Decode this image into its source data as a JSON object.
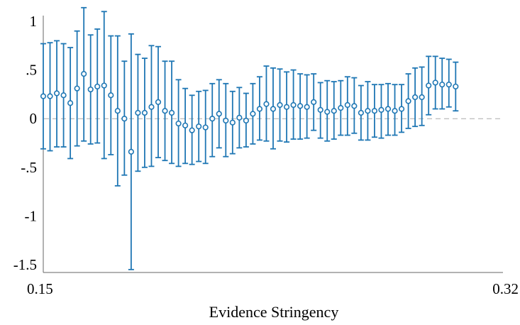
{
  "chart_data": {
    "type": "scatter",
    "title": "",
    "xlabel": "Evidence Stringency",
    "ylabel": "",
    "xlim": [
      0.15,
      0.32
    ],
    "ylim": [
      -1.5,
      1.05
    ],
    "x_ticks": [
      {
        "value": 0.15,
        "label": "0.15"
      },
      {
        "value": 0.32,
        "label": "0.32"
      }
    ],
    "y_ticks": [
      {
        "value": 1,
        "label": "1"
      },
      {
        "value": 0.5,
        "label": ".5"
      },
      {
        "value": 0,
        "label": "0"
      },
      {
        "value": -0.5,
        "label": "-.5"
      },
      {
        "value": -1,
        "label": "-1"
      },
      {
        "value": -1.5,
        "label": "-1.5"
      }
    ],
    "reference_line": {
      "value": 0,
      "style": "dashed"
    },
    "colors": {
      "marker": "#1f77b4",
      "reference": "#aaaaaa",
      "axis": "#666666"
    },
    "series": [
      {
        "points": [
          {
            "x": 0.15,
            "y": 0.23,
            "lo": -0.31,
            "hi": 0.77
          },
          {
            "x": 0.1525,
            "y": 0.23,
            "lo": -0.33,
            "hi": 0.78
          },
          {
            "x": 0.155,
            "y": 0.26,
            "lo": -0.29,
            "hi": 0.8
          },
          {
            "x": 0.1575,
            "y": 0.24,
            "lo": -0.29,
            "hi": 0.77
          },
          {
            "x": 0.16,
            "y": 0.16,
            "lo": -0.41,
            "hi": 0.73
          },
          {
            "x": 0.1625,
            "y": 0.31,
            "lo": -0.28,
            "hi": 0.9
          },
          {
            "x": 0.165,
            "y": 0.46,
            "lo": -0.23,
            "hi": 1.14
          },
          {
            "x": 0.1675,
            "y": 0.3,
            "lo": -0.26,
            "hi": 0.86
          },
          {
            "x": 0.17,
            "y": 0.33,
            "lo": -0.25,
            "hi": 0.92
          },
          {
            "x": 0.1725,
            "y": 0.34,
            "lo": -0.41,
            "hi": 1.1
          },
          {
            "x": 0.175,
            "y": 0.24,
            "lo": -0.37,
            "hi": 0.85
          },
          {
            "x": 0.1775,
            "y": 0.08,
            "lo": -0.69,
            "hi": 0.85
          },
          {
            "x": 0.18,
            "y": 0.0,
            "lo": -0.58,
            "hi": 0.59
          },
          {
            "x": 0.1825,
            "y": -0.34,
            "lo": -1.55,
            "hi": 0.87
          },
          {
            "x": 0.185,
            "y": 0.06,
            "lo": -0.54,
            "hi": 0.66
          },
          {
            "x": 0.1875,
            "y": 0.06,
            "lo": -0.5,
            "hi": 0.62
          },
          {
            "x": 0.19,
            "y": 0.12,
            "lo": -0.49,
            "hi": 0.75
          },
          {
            "x": 0.1925,
            "y": 0.17,
            "lo": -0.4,
            "hi": 0.74
          },
          {
            "x": 0.195,
            "y": 0.08,
            "lo": -0.43,
            "hi": 0.59
          },
          {
            "x": 0.1975,
            "y": 0.06,
            "lo": -0.46,
            "hi": 0.59
          },
          {
            "x": 0.2,
            "y": -0.05,
            "lo": -0.49,
            "hi": 0.4
          },
          {
            "x": 0.2025,
            "y": -0.07,
            "lo": -0.46,
            "hi": 0.31
          },
          {
            "x": 0.205,
            "y": -0.12,
            "lo": -0.47,
            "hi": 0.24
          },
          {
            "x": 0.2075,
            "y": -0.08,
            "lo": -0.44,
            "hi": 0.28
          },
          {
            "x": 0.21,
            "y": -0.09,
            "lo": -0.46,
            "hi": 0.29
          },
          {
            "x": 0.2125,
            "y": 0.0,
            "lo": -0.39,
            "hi": 0.36
          },
          {
            "x": 0.215,
            "y": 0.05,
            "lo": -0.3,
            "hi": 0.4
          },
          {
            "x": 0.2175,
            "y": -0.02,
            "lo": -0.39,
            "hi": 0.36
          },
          {
            "x": 0.22,
            "y": -0.04,
            "lo": -0.36,
            "hi": 0.28
          },
          {
            "x": 0.2225,
            "y": 0.01,
            "lo": -0.3,
            "hi": 0.32
          },
          {
            "x": 0.225,
            "y": -0.02,
            "lo": -0.29,
            "hi": 0.26
          },
          {
            "x": 0.2275,
            "y": 0.05,
            "lo": -0.26,
            "hi": 0.36
          },
          {
            "x": 0.23,
            "y": 0.1,
            "lo": -0.22,
            "hi": 0.43
          },
          {
            "x": 0.2325,
            "y": 0.15,
            "lo": -0.23,
            "hi": 0.54
          },
          {
            "x": 0.235,
            "y": 0.1,
            "lo": -0.31,
            "hi": 0.52
          },
          {
            "x": 0.2375,
            "y": 0.14,
            "lo": -0.23,
            "hi": 0.51
          },
          {
            "x": 0.24,
            "y": 0.12,
            "lo": -0.24,
            "hi": 0.48
          },
          {
            "x": 0.2425,
            "y": 0.14,
            "lo": -0.21,
            "hi": 0.5
          },
          {
            "x": 0.245,
            "y": 0.13,
            "lo": -0.21,
            "hi": 0.46
          },
          {
            "x": 0.2475,
            "y": 0.12,
            "lo": -0.2,
            "hi": 0.45
          },
          {
            "x": 0.25,
            "y": 0.17,
            "lo": -0.12,
            "hi": 0.46
          },
          {
            "x": 0.2525,
            "y": 0.09,
            "lo": -0.2,
            "hi": 0.37
          },
          {
            "x": 0.255,
            "y": 0.07,
            "lo": -0.23,
            "hi": 0.39
          },
          {
            "x": 0.2575,
            "y": 0.08,
            "lo": -0.21,
            "hi": 0.38
          },
          {
            "x": 0.26,
            "y": 0.11,
            "lo": -0.17,
            "hi": 0.39
          },
          {
            "x": 0.2625,
            "y": 0.14,
            "lo": -0.17,
            "hi": 0.43
          },
          {
            "x": 0.265,
            "y": 0.13,
            "lo": -0.15,
            "hi": 0.42
          },
          {
            "x": 0.2675,
            "y": 0.06,
            "lo": -0.22,
            "hi": 0.34
          },
          {
            "x": 0.27,
            "y": 0.08,
            "lo": -0.22,
            "hi": 0.38
          },
          {
            "x": 0.2725,
            "y": 0.08,
            "lo": -0.19,
            "hi": 0.35
          },
          {
            "x": 0.275,
            "y": 0.09,
            "lo": -0.2,
            "hi": 0.35
          },
          {
            "x": 0.2775,
            "y": 0.1,
            "lo": -0.17,
            "hi": 0.36
          },
          {
            "x": 0.28,
            "y": 0.08,
            "lo": -0.17,
            "hi": 0.35
          },
          {
            "x": 0.2825,
            "y": 0.1,
            "lo": -0.14,
            "hi": 0.35
          },
          {
            "x": 0.285,
            "y": 0.18,
            "lo": -0.1,
            "hi": 0.46
          },
          {
            "x": 0.2875,
            "y": 0.22,
            "lo": -0.08,
            "hi": 0.52
          },
          {
            "x": 0.29,
            "y": 0.22,
            "lo": -0.07,
            "hi": 0.53
          },
          {
            "x": 0.2925,
            "y": 0.34,
            "lo": 0.04,
            "hi": 0.64
          },
          {
            "x": 0.295,
            "y": 0.37,
            "lo": 0.1,
            "hi": 0.64
          },
          {
            "x": 0.2975,
            "y": 0.35,
            "lo": 0.1,
            "hi": 0.62
          },
          {
            "x": 0.3,
            "y": 0.35,
            "lo": 0.12,
            "hi": 0.61
          },
          {
            "x": 0.3025,
            "y": 0.33,
            "lo": 0.08,
            "hi": 0.58
          }
        ]
      }
    ]
  }
}
